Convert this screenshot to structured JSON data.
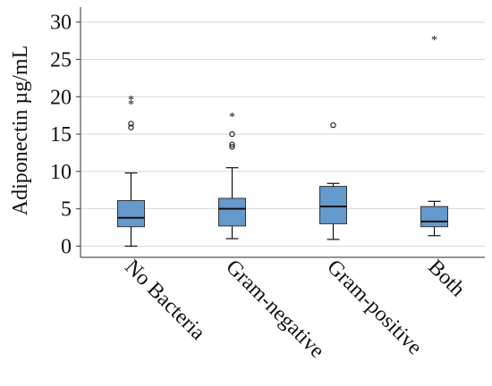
{
  "chart_data": {
    "type": "box",
    "title": "",
    "xlabel": "",
    "ylabel": "Adiponectin µg/mL",
    "ylim": [
      -1.5,
      32
    ],
    "yticks": [
      0,
      5,
      10,
      15,
      20,
      25,
      30
    ],
    "ytick_labels": [
      "0",
      "5",
      "10",
      "15",
      "20",
      "25",
      "30"
    ],
    "grid": true,
    "box_color": "#6699cc",
    "categories": [
      "No Bacteria",
      "Gram-negative",
      "Gram-positive",
      "Both"
    ],
    "boxes": [
      {
        "category": "No Bacteria",
        "min": 0,
        "q1": 2.6,
        "median": 3.8,
        "q3": 6.1,
        "max": 9.8
      },
      {
        "category": "Gram-negative",
        "min": 1.0,
        "q1": 2.7,
        "median": 5.0,
        "q3": 6.4,
        "max": 10.5
      },
      {
        "category": "Gram-positive",
        "min": 0.9,
        "q1": 3.0,
        "median": 5.3,
        "q3": 8.0,
        "max": 8.4
      },
      {
        "category": "Both",
        "min": 1.4,
        "q1": 2.6,
        "median": 3.3,
        "q3": 5.3,
        "max": 6.0
      }
    ],
    "outliers": [
      {
        "category": "No Bacteria",
        "value": 15.9,
        "marker": "circle"
      },
      {
        "category": "No Bacteria",
        "value": 16.4,
        "marker": "circle"
      },
      {
        "category": "No Bacteria",
        "value": 19.2,
        "marker": "star"
      },
      {
        "category": "No Bacteria",
        "value": 19.8,
        "marker": "star"
      },
      {
        "category": "Gram-negative",
        "value": 13.3,
        "marker": "circle"
      },
      {
        "category": "Gram-negative",
        "value": 13.6,
        "marker": "circle"
      },
      {
        "category": "Gram-negative",
        "value": 15.0,
        "marker": "circle"
      },
      {
        "category": "Gram-negative",
        "value": 17.5,
        "marker": "star"
      },
      {
        "category": "Gram-positive",
        "value": 16.2,
        "marker": "circle"
      },
      {
        "category": "Both",
        "value": 27.8,
        "marker": "star"
      }
    ]
  }
}
